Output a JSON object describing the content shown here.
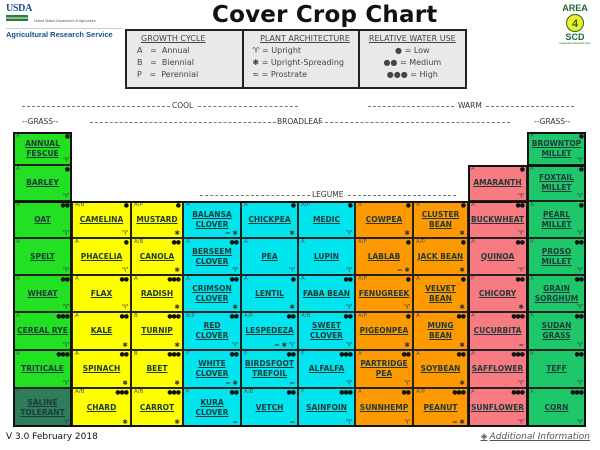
{
  "header": {
    "usda_mark": "USDA",
    "usda_sub": "United States Department of Agriculture",
    "agency": "Agricultural Research Service",
    "title": "Cover Crop Chart",
    "partner_logo": {
      "top": "AREA",
      "number": "4",
      "bottom": "SCD",
      "sub": "Cooperative Research Farm"
    }
  },
  "legend": {
    "growth_cycle": {
      "heading": "GROWTH CYCLE",
      "items": [
        "A   =  Annual",
        "B   =  Biennial",
        "P   =  Perennial"
      ]
    },
    "plant_architecture": {
      "heading": "PLANT ARCHITECTURE",
      "items": [
        "♈ = Upright",
        "✱ = Upright-Spreading",
        "≈ = Prostrate"
      ]
    },
    "water_use": {
      "heading": "RELATIVE WATER USE",
      "items": [
        "● = Low",
        "●● = Medium",
        "●●● = High"
      ]
    }
  },
  "bands": {
    "cool": "COOL",
    "warm": "WARM",
    "grass_left": "--GRASS--",
    "broadleaf": "BROADLEAF",
    "grass_right": "--GRASS--",
    "legume": "LEGUME"
  },
  "colors": {
    "grass_cool": "#22e022",
    "brassica": "#ffff00",
    "legume_cool": "#00e5ee",
    "legume_warm": "#ff9900",
    "broadleaf_warm": "#f77b80",
    "grass_warm": "#1ec86a",
    "saline": "#2e7d5b"
  },
  "cells": [
    {
      "name": "ANNUAL FESCUE",
      "cycle": "A",
      "water": "●",
      "arch": "♈",
      "col": 0,
      "row": 0,
      "group": "grass_cool"
    },
    {
      "name": "BARLEY",
      "cycle": "A",
      "water": "●",
      "arch": "♈",
      "col": 0,
      "row": 1,
      "group": "grass_cool"
    },
    {
      "name": "OAT",
      "cycle": "A",
      "water": "●●",
      "arch": "♈",
      "col": 0,
      "row": 2,
      "group": "grass_cool"
    },
    {
      "name": "SPELT",
      "cycle": "A",
      "water": "",
      "arch": "♈",
      "col": 0,
      "row": 3,
      "group": "grass_cool"
    },
    {
      "name": "WHEAT",
      "cycle": "A",
      "water": "●●",
      "arch": "♈",
      "col": 0,
      "row": 4,
      "group": "grass_cool"
    },
    {
      "name": "CEREAL RYE",
      "cycle": "A",
      "water": "●●●",
      "arch": "♈",
      "col": 0,
      "row": 5,
      "group": "grass_cool"
    },
    {
      "name": "TRITICALE",
      "cycle": "A",
      "water": "●●●",
      "arch": "♈",
      "col": 0,
      "row": 6,
      "group": "grass_cool"
    },
    {
      "name": "SALINE TOLERANT",
      "cycle": "P",
      "water": "",
      "arch": "♈",
      "col": 0,
      "row": 7,
      "group": "saline"
    },
    {
      "name": "CAMELINA",
      "cycle": "A/B",
      "water": "●",
      "arch": "♈",
      "col": 1,
      "row": 2,
      "group": "brassica"
    },
    {
      "name": "PHACELIA",
      "cycle": "A",
      "water": "●",
      "arch": "♈",
      "col": 1,
      "row": 3,
      "group": "brassica"
    },
    {
      "name": "FLAX",
      "cycle": "A",
      "water": "●●",
      "arch": "♈",
      "col": 1,
      "row": 4,
      "group": "brassica"
    },
    {
      "name": "KALE",
      "cycle": "A",
      "water": "●●",
      "arch": "✱",
      "col": 1,
      "row": 5,
      "group": "brassica"
    },
    {
      "name": "SPINACH",
      "cycle": "A",
      "water": "●●",
      "arch": "✱",
      "col": 1,
      "row": 6,
      "group": "brassica"
    },
    {
      "name": "CHARD",
      "cycle": "A/B",
      "water": "●●●",
      "arch": "✱",
      "col": 1,
      "row": 7,
      "group": "brassica"
    },
    {
      "name": "MUSTARD",
      "cycle": "A/P",
      "water": "●",
      "arch": "✱",
      "col": 2,
      "row": 2,
      "group": "brassica"
    },
    {
      "name": "CANOLA",
      "cycle": "A/B",
      "water": "●●",
      "arch": "✱",
      "col": 2,
      "row": 3,
      "group": "brassica"
    },
    {
      "name": "RADISH",
      "cycle": "A",
      "water": "●●●",
      "arch": "✱",
      "col": 2,
      "row": 4,
      "group": "brassica"
    },
    {
      "name": "TURNIP",
      "cycle": "B",
      "water": "●●●",
      "arch": "✱",
      "col": 2,
      "row": 5,
      "group": "brassica"
    },
    {
      "name": "BEET",
      "cycle": "B",
      "water": "●●●",
      "arch": "✱",
      "col": 2,
      "row": 6,
      "group": "brassica"
    },
    {
      "name": "CARROT",
      "cycle": "A/B",
      "water": "●●●",
      "arch": "✱",
      "col": 2,
      "row": 7,
      "group": "brassica"
    },
    {
      "name": "BALANSA CLOVER",
      "cycle": "A",
      "water": "",
      "arch": "≈ ✱",
      "col": 3,
      "row": 2,
      "group": "legume_cool"
    },
    {
      "name": "BERSEEM CLOVER",
      "cycle": "A",
      "water": "●●",
      "arch": "♈",
      "col": 3,
      "row": 3,
      "group": "legume_cool"
    },
    {
      "name": "CRIMSON CLOVER",
      "cycle": "A",
      "water": "●●",
      "arch": "✱",
      "col": 3,
      "row": 4,
      "group": "legume_cool"
    },
    {
      "name": "RED CLOVER",
      "cycle": "B/P",
      "water": "●●",
      "arch": "♈",
      "col": 3,
      "row": 5,
      "group": "legume_cool"
    },
    {
      "name": "WHITE CLOVER",
      "cycle": "P",
      "water": "●●",
      "arch": "≈ ✱",
      "col": 3,
      "row": 6,
      "group": "legume_cool"
    },
    {
      "name": "KURA CLOVER",
      "cycle": "P",
      "water": "●●",
      "arch": "≈",
      "col": 3,
      "row": 7,
      "group": "legume_cool"
    },
    {
      "name": "CHICKPEA",
      "cycle": "A",
      "water": "●",
      "arch": "✱",
      "col": 4,
      "row": 2,
      "group": "legume_cool"
    },
    {
      "name": "PEA",
      "cycle": "A",
      "water": "",
      "arch": "♈",
      "col": 4,
      "row": 3,
      "group": "legume_cool"
    },
    {
      "name": "LENTIL",
      "cycle": "A",
      "water": "●",
      "arch": "✱",
      "col": 4,
      "row": 4,
      "group": "legume_cool"
    },
    {
      "name": "LESPEDEZA",
      "cycle": "A/P",
      "water": "●●",
      "arch": "≈ ✱ ♈",
      "col": 4,
      "row": 5,
      "group": "legume_cool"
    },
    {
      "name": "BIRDSFOOT TREFOIL",
      "cycle": "P",
      "water": "●●",
      "arch": "≈",
      "col": 4,
      "row": 6,
      "group": "legume_cool"
    },
    {
      "name": "VETCH",
      "cycle": "A/B",
      "water": "●●",
      "arch": "≈",
      "col": 4,
      "row": 7,
      "group": "legume_cool"
    },
    {
      "name": "MEDIC",
      "cycle": "A/P",
      "water": "●",
      "arch": "♈",
      "col": 5,
      "row": 2,
      "group": "legume_cool"
    },
    {
      "name": "LUPIN",
      "cycle": "A",
      "water": "",
      "arch": "♈",
      "col": 5,
      "row": 3,
      "group": "legume_cool"
    },
    {
      "name": "FABA BEAN",
      "cycle": "A",
      "water": "●●",
      "arch": "♈",
      "col": 5,
      "row": 4,
      "group": "legume_cool"
    },
    {
      "name": "SWEET CLOVER",
      "cycle": "A/B",
      "water": "●●",
      "arch": "♈",
      "col": 5,
      "row": 5,
      "group": "legume_cool"
    },
    {
      "name": "ALFALFA",
      "cycle": "P",
      "water": "●●●",
      "arch": "♈",
      "col": 5,
      "row": 6,
      "group": "legume_cool"
    },
    {
      "name": "SAINFOIN",
      "cycle": "P",
      "water": "●●●",
      "arch": "♈",
      "col": 5,
      "row": 7,
      "group": "legume_cool"
    },
    {
      "name": "COWPEA",
      "cycle": "A",
      "water": "●",
      "arch": "✱",
      "col": 6,
      "row": 2,
      "group": "legume_warm"
    },
    {
      "name": "LABLAB",
      "cycle": "A/P",
      "water": "●",
      "arch": "≈ ✱",
      "col": 6,
      "row": 3,
      "group": "legume_warm"
    },
    {
      "name": "FENUGREEK",
      "cycle": "A/P",
      "water": "●",
      "arch": "♈",
      "col": 6,
      "row": 4,
      "group": "legume_warm"
    },
    {
      "name": "PIGEONPEA",
      "cycle": "A/P",
      "water": "●",
      "arch": "✱",
      "col": 6,
      "row": 5,
      "group": "legume_warm"
    },
    {
      "name": "PARTRIDGE PEA",
      "cycle": "A",
      "water": "●●",
      "arch": "♈",
      "col": 6,
      "row": 6,
      "group": "legume_warm"
    },
    {
      "name": "SUNNHEMP",
      "cycle": "A",
      "water": "●●",
      "arch": "♈",
      "col": 6,
      "row": 7,
      "group": "legume_warm"
    },
    {
      "name": "CLUSTER BEAN",
      "cycle": "A",
      "water": "●",
      "arch": "✱",
      "col": 7,
      "row": 2,
      "group": "legume_warm"
    },
    {
      "name": "JACK BEAN",
      "cycle": "A/P",
      "water": "●",
      "arch": "✱",
      "col": 7,
      "row": 3,
      "group": "legume_warm"
    },
    {
      "name": "VELVET BEAN",
      "cycle": "A",
      "water": "●",
      "arch": "✱",
      "col": 7,
      "row": 4,
      "group": "legume_warm"
    },
    {
      "name": "MUNG BEAN",
      "cycle": "A",
      "water": "●●",
      "arch": "✱",
      "col": 7,
      "row": 5,
      "group": "legume_warm"
    },
    {
      "name": "SOYBEAN",
      "cycle": "A",
      "water": "●●",
      "arch": "✱",
      "col": 7,
      "row": 6,
      "group": "legume_warm"
    },
    {
      "name": "PEANUT",
      "cycle": "A/P",
      "water": "●●●",
      "arch": "≈ ✱",
      "col": 7,
      "row": 7,
      "group": "legume_warm"
    },
    {
      "name": "AMARANTH",
      "cycle": "A",
      "water": "●",
      "arch": "♈",
      "col": 8,
      "row": 1,
      "group": "broadleaf_warm"
    },
    {
      "name": "BUCKWHEAT",
      "cycle": "A",
      "water": "●●",
      "arch": "♈",
      "col": 8,
      "row": 2,
      "group": "broadleaf_warm"
    },
    {
      "name": "QUINOA",
      "cycle": "A",
      "water": "●●",
      "arch": "♈",
      "col": 8,
      "row": 3,
      "group": "broadleaf_warm"
    },
    {
      "name": "CHICORY",
      "cycle": "P",
      "water": "●●",
      "arch": "✱",
      "col": 8,
      "row": 4,
      "group": "broadleaf_warm"
    },
    {
      "name": "CUCURBITA",
      "cycle": "A",
      "water": "●●●",
      "arch": "≈",
      "col": 8,
      "row": 5,
      "group": "broadleaf_warm"
    },
    {
      "name": "SAFFLOWER",
      "cycle": "A",
      "water": "●●●",
      "arch": "♈",
      "col": 8,
      "row": 6,
      "group": "broadleaf_warm"
    },
    {
      "name": "SUNFLOWER",
      "cycle": "A",
      "water": "●●●",
      "arch": "♈",
      "col": 8,
      "row": 7,
      "group": "broadleaf_warm"
    },
    {
      "name": "BROWNTOP MILLET",
      "cycle": "A",
      "water": "●",
      "arch": "♈",
      "col": 9,
      "row": 0,
      "group": "grass_warm"
    },
    {
      "name": "FOXTAIL MILLET",
      "cycle": "A",
      "water": "●",
      "arch": "♈",
      "col": 9,
      "row": 1,
      "group": "grass_warm"
    },
    {
      "name": "PEARL MILLET",
      "cycle": "A",
      "water": "●",
      "arch": "♈",
      "col": 9,
      "row": 2,
      "group": "grass_warm"
    },
    {
      "name": "PROSO MILLET",
      "cycle": "A",
      "water": "●●",
      "arch": "♈",
      "col": 9,
      "row": 3,
      "group": "grass_warm"
    },
    {
      "name": "GRAIN SORGHUM",
      "cycle": "A",
      "water": "●●",
      "arch": "♈",
      "col": 9,
      "row": 4,
      "group": "grass_warm"
    },
    {
      "name": "SUDAN GRASS",
      "cycle": "A",
      "water": "●●",
      "arch": "♈",
      "col": 9,
      "row": 5,
      "group": "grass_warm"
    },
    {
      "name": "TEFF",
      "cycle": "A",
      "water": "●●",
      "arch": "♈",
      "col": 9,
      "row": 6,
      "group": "grass_warm"
    },
    {
      "name": "CORN",
      "cycle": "A",
      "water": "●●●",
      "arch": "♈",
      "col": 9,
      "row": 7,
      "group": "grass_warm"
    }
  ],
  "footer": {
    "version": "V 3.0 February 2018",
    "link_icon": "◈",
    "link": "Additional Information"
  }
}
